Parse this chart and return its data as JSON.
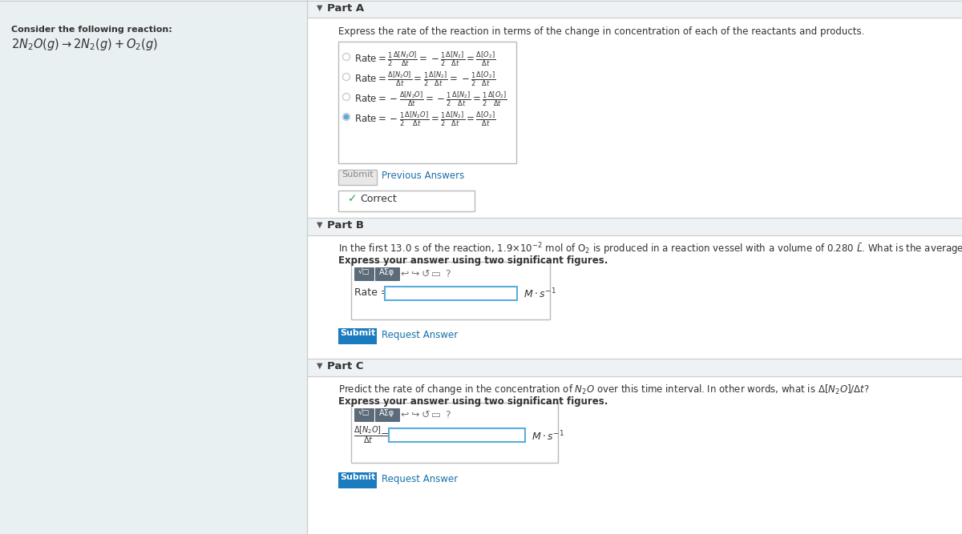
{
  "bg_color": "#e8f0f2",
  "white": "#ffffff",
  "border_gray": "#cccccc",
  "border_light": "#dddddd",
  "text_dark": "#333333",
  "text_medium": "#666666",
  "blue_link": "#1a6faa",
  "green_correct": "#28a745",
  "blue_submit": "#1a7bbf",
  "blue_border": "#5aacdd",
  "header_bg": "#eef2f4",
  "radio_fill": "#5aacdd",
  "radio_border": "#aaaaaa",
  "reaction_header": "Consider the following reaction:",
  "reaction_latex": "$2N_2O(g) \\rightarrow 2N_2(g) + O_2(g)$",
  "partA_label": "Part A",
  "partA_instruction": "Express the rate of the reaction in terms of the change in concentration of each of the reactants and products.",
  "options_latex": [
    "$\\mathrm{Rate} = \\frac{1}{2}\\frac{\\Delta[N_2O]}{\\Delta t} = -\\frac{1}{2}\\frac{\\Delta[N_2]}{\\Delta t} = \\frac{\\Delta[O_2]}{\\Delta t}$",
    "$\\mathrm{Rate} = \\frac{\\Delta[N_2O]}{\\Delta t} = \\frac{1}{2}\\frac{\\Delta[N_2]}{\\Delta t} = -\\frac{1}{2}\\frac{\\Delta[O_2]}{\\Delta t}$",
    "$\\mathrm{Rate} = -\\frac{\\Delta[N_2O]}{\\Delta t} = -\\frac{1}{2}\\frac{\\Delta[N_2]}{\\Delta t} = \\frac{1}{2}\\frac{\\Delta[O_2]}{\\Delta t}$",
    "$\\mathrm{Rate} = -\\frac{1}{2}\\frac{\\Delta[N_2O]}{\\Delta t} = \\frac{1}{2}\\frac{\\Delta[N_2]}{\\Delta t} = \\frac{\\Delta[O_2]}{\\Delta t}$"
  ],
  "radio_selected": [
    false,
    false,
    false,
    true
  ],
  "submit_gray": "Submit",
  "previous_answers": "Previous Answers",
  "correct_label": "Correct",
  "partB_label": "Part B",
  "partB_instruction": "In the first 13.0 s of the reaction, 1.9×10$^{-2}$ mol of O$_2$ is produced in a reaction vessel with a volume of 0.280 $\\bar{L}$. What is the average rate of the reaction over this time interval?",
  "partB_sub": "Express your answer using two significant figures.",
  "partB_rate_label": "Rate =",
  "partB_units": "$M \\cdot s^{-1}$",
  "partB_submit": "Submit",
  "partB_request": "Request Answer",
  "partC_label": "Part C",
  "partC_instruction": "Predict the rate of change in the concentration of $N_2O$ over this time interval. In other words, what is $\\Delta[N_2O]/\\Delta t$?",
  "partC_sub": "Express your answer using two significant figures.",
  "partC_left_label": "$\\frac{\\Delta[N_2O]}{\\Delta t}$",
  "partC_units": "$M \\cdot s^{-1}$",
  "partC_submit": "Submit",
  "partC_request": "Request Answer"
}
